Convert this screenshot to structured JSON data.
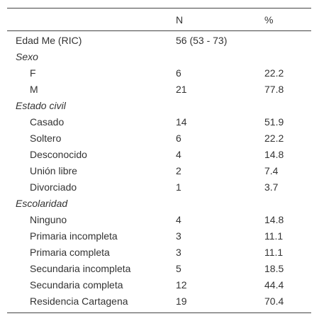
{
  "table": {
    "columns": [
      "N",
      "%"
    ],
    "rows": [
      {
        "label": "Edad Me (RIC)",
        "n": "56 (53 - 73)"
      },
      {
        "section": "Sexo"
      },
      {
        "label": "F",
        "n": 6,
        "pct": 22.2
      },
      {
        "label": "M",
        "n": 21,
        "pct": 77.8
      },
      {
        "section": "Estado civil"
      },
      {
        "label": "Casado",
        "n": 14,
        "pct": 51.9
      },
      {
        "label": "Soltero",
        "n": 6,
        "pct": 22.2
      },
      {
        "label": "Desconocido",
        "n": 4,
        "pct": 14.8
      },
      {
        "label": "Unión libre",
        "n": 2,
        "pct": 7.4
      },
      {
        "label": "Divorciado",
        "n": 1,
        "pct": 3.7
      },
      {
        "section": "Escolaridad"
      },
      {
        "label": "Ninguno",
        "n": 4,
        "pct": 14.8
      },
      {
        "label": "Primaria incompleta",
        "n": 3,
        "pct": 11.1
      },
      {
        "label": "Primaria completa",
        "n": 3,
        "pct": 11.1
      },
      {
        "label": "Secundaria incompleta",
        "n": 5,
        "pct": 18.5
      },
      {
        "label": "Secundaria completa",
        "n": 12,
        "pct": 44.4
      },
      {
        "label": "Residencia Cartagena",
        "n": 19,
        "pct": 70.4
      }
    ]
  }
}
